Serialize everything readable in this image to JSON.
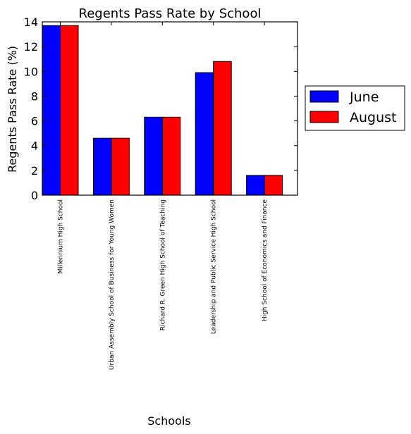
{
  "chart_data": {
    "type": "bar",
    "title": "Regents Pass Rate by School",
    "xlabel": "Schools",
    "ylabel": "Regents Pass Rate (%)",
    "ylim": [
      0,
      14
    ],
    "yticks": [
      0,
      2,
      4,
      6,
      8,
      10,
      12,
      14
    ],
    "categories": [
      "Millennium High School",
      "Urban Assembly School of Business for Young Women",
      "Richard R. Green High School of Teaching",
      "Leadership and Public Service High School",
      "High School of Economics and Finance"
    ],
    "series": [
      {
        "name": "June",
        "color": "#0000ff",
        "values": [
          13.7,
          4.6,
          6.3,
          9.9,
          1.6
        ]
      },
      {
        "name": "August",
        "color": "#ff0000",
        "values": [
          13.7,
          4.6,
          6.3,
          10.8,
          1.6
        ]
      }
    ],
    "legend_position": "right",
    "grid": false
  }
}
